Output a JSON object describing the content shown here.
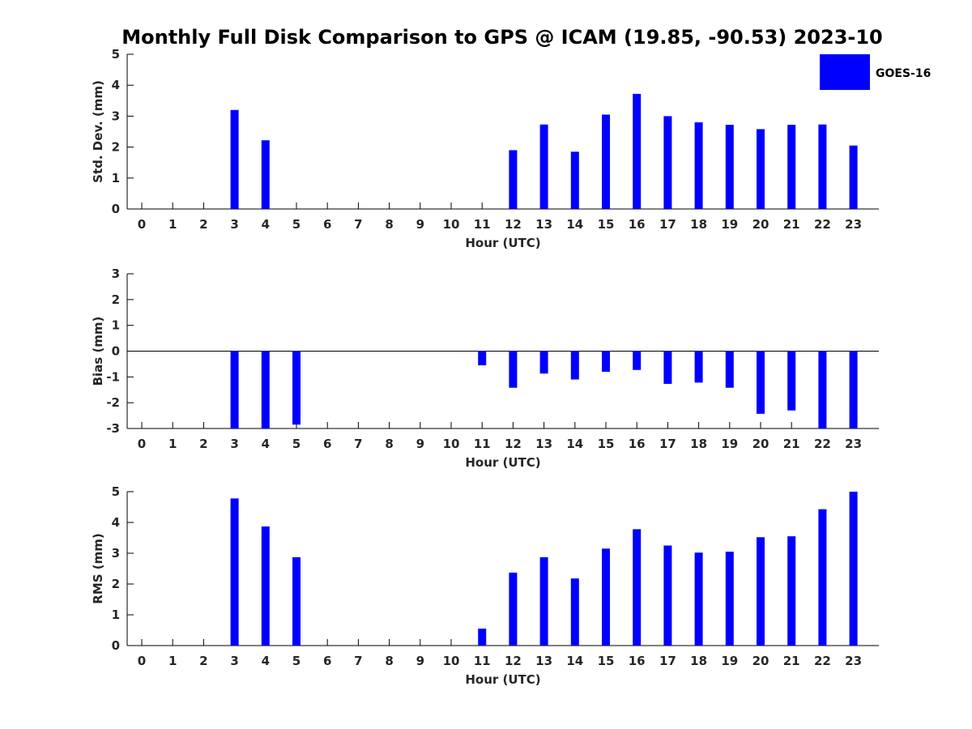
{
  "chart_data": {
    "type": "bar",
    "title": "Monthly Full Disk Comparison to GPS @ ICAM (19.85, -90.53) 2023-10",
    "legend": {
      "entries": [
        "GOES-16"
      ],
      "placement": "top-right"
    },
    "series_color": "#0000ff",
    "categories": [
      "0",
      "1",
      "2",
      "3",
      "4",
      "5",
      "6",
      "7",
      "8",
      "9",
      "10",
      "11",
      "12",
      "13",
      "14",
      "15",
      "16",
      "17",
      "18",
      "19",
      "20",
      "21",
      "22",
      "23"
    ],
    "panels": [
      {
        "id": "stddev",
        "ylabel": "Std. Dev. (mm)",
        "xlabel": "Hour (UTC)",
        "ylim": [
          0,
          5
        ],
        "yticks": [
          "0",
          "1",
          "2",
          "3",
          "4",
          "5"
        ],
        "zero_line": false,
        "values": [
          null,
          null,
          null,
          3.2,
          2.22,
          null,
          null,
          null,
          null,
          null,
          null,
          null,
          1.9,
          2.73,
          1.85,
          3.05,
          3.72,
          3.0,
          2.8,
          2.72,
          2.58,
          2.72,
          2.73,
          2.05
        ]
      },
      {
        "id": "bias",
        "ylabel": "Bias (mm)",
        "xlabel": "Hour (UTC)",
        "ylim": [
          -3,
          3
        ],
        "yticks": [
          "-3",
          "-2",
          "-1",
          "0",
          "1",
          "2",
          "3"
        ],
        "zero_line": true,
        "values": [
          null,
          null,
          null,
          -3.0,
          -3.0,
          -2.85,
          null,
          null,
          null,
          null,
          null,
          -0.55,
          -1.42,
          -0.87,
          -1.1,
          -0.8,
          -0.73,
          -1.27,
          -1.22,
          -1.42,
          -2.43,
          -2.3,
          -3.0,
          -3.0
        ]
      },
      {
        "id": "rms",
        "ylabel": "RMS (mm)",
        "xlabel": "Hour (UTC)",
        "ylim": [
          0,
          5
        ],
        "yticks": [
          "0",
          "1",
          "2",
          "3",
          "4",
          "5"
        ],
        "zero_line": false,
        "values": [
          null,
          null,
          null,
          4.78,
          3.87,
          2.87,
          null,
          null,
          null,
          null,
          null,
          0.55,
          2.37,
          2.87,
          2.18,
          3.15,
          3.78,
          3.25,
          3.02,
          3.05,
          3.52,
          3.55,
          4.43,
          5.0
        ]
      }
    ]
  }
}
